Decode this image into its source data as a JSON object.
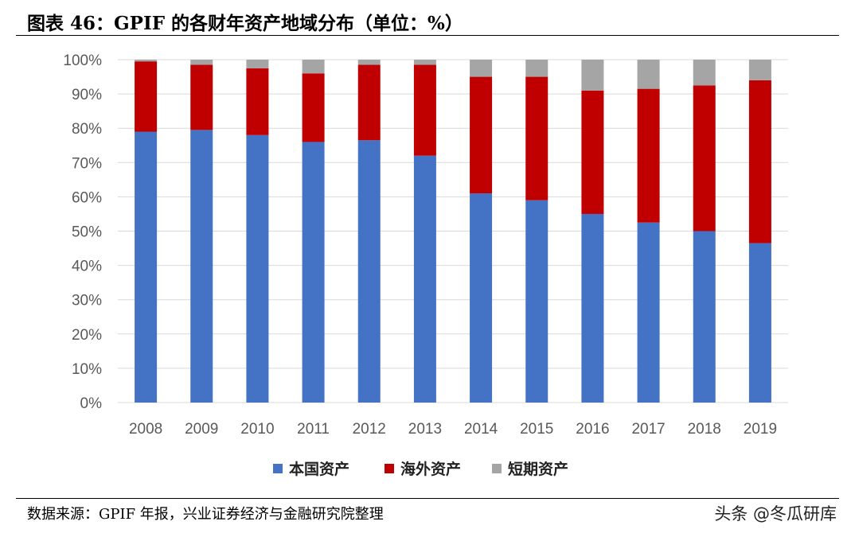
{
  "figure_title": "图表 46：GPIF 的各财年资产地域分布（单位：%）",
  "source_note": "数据来源：GPIF 年报，兴业证券经济与金融研究院整理",
  "watermark": "头条 @冬瓜研库",
  "colors": {
    "domestic": "#4472C4",
    "overseas": "#C00000",
    "short_term": "#A5A5A5",
    "grid": "#D9D9D9",
    "axis_text": "#595959"
  },
  "chart_data": {
    "type": "bar",
    "stacked": true,
    "categories": [
      "2008",
      "2009",
      "2010",
      "2011",
      "2012",
      "2013",
      "2014",
      "2015",
      "2016",
      "2017",
      "2018",
      "2019"
    ],
    "series": [
      {
        "name": "本国资产",
        "values": [
          79,
          79.5,
          78,
          76,
          76.5,
          72,
          61,
          59,
          55,
          52.5,
          50,
          46.5
        ]
      },
      {
        "name": "海外资产",
        "values": [
          20.5,
          19,
          19.5,
          20,
          22,
          26.5,
          34,
          36,
          36,
          39,
          42.5,
          47.5
        ]
      },
      {
        "name": "短期资产",
        "values": [
          0.5,
          1.5,
          2.5,
          4,
          1.5,
          1.5,
          5,
          5,
          9,
          8.5,
          7.5,
          6
        ]
      }
    ],
    "ylim": [
      0,
      100
    ],
    "yticks": [
      0,
      10,
      20,
      30,
      40,
      50,
      60,
      70,
      80,
      90,
      100
    ],
    "ytick_labels": [
      "0%",
      "10%",
      "20%",
      "30%",
      "40%",
      "50%",
      "60%",
      "70%",
      "80%",
      "90%",
      "100%"
    ],
    "grid": true,
    "legend_position": "bottom"
  }
}
